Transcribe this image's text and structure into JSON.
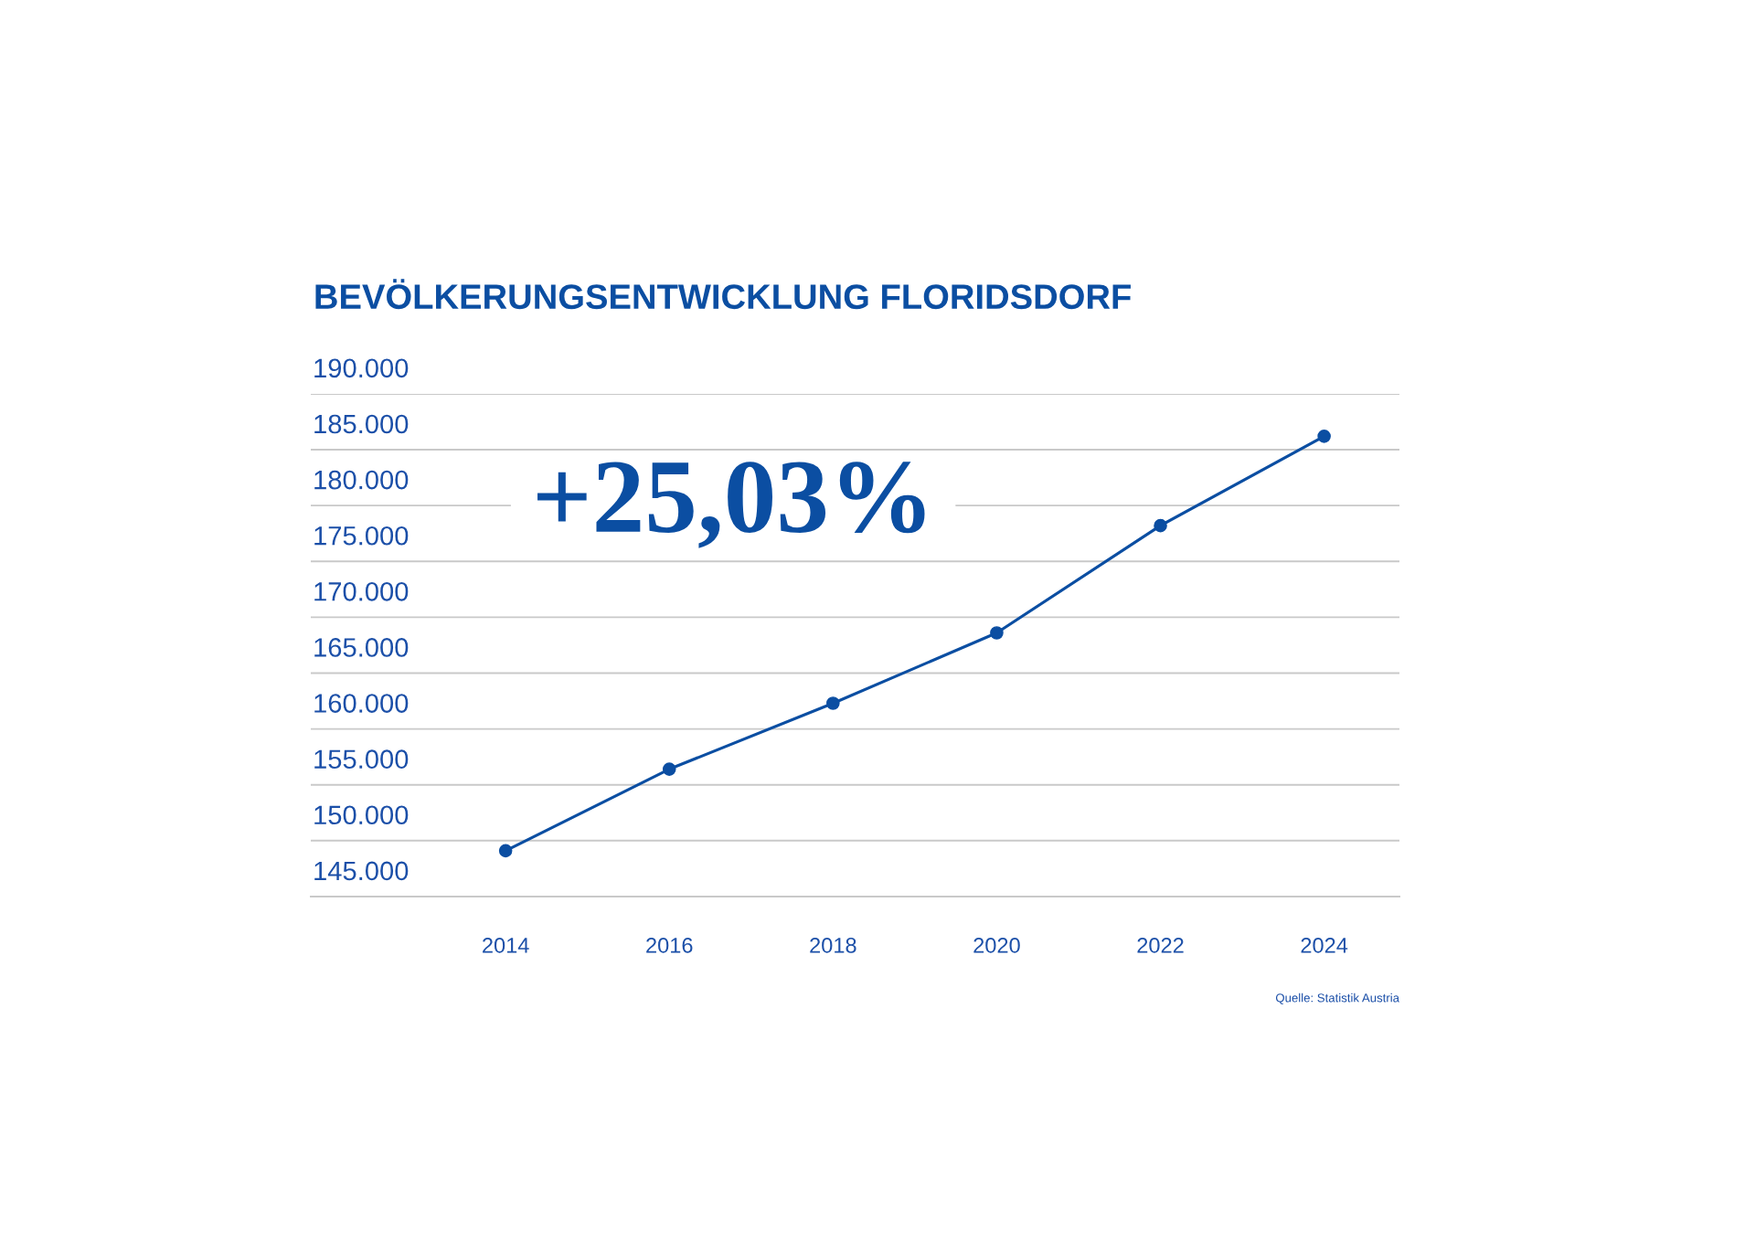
{
  "chart_data": {
    "type": "line",
    "title": "BEVÖLKERUNGSENTWICKLUNG FLORIDSDORF",
    "categories": [
      "2014",
      "2016",
      "2018",
      "2020",
      "2022",
      "2024"
    ],
    "series": [
      {
        "color": "#0b4ea2",
        "values": [
          149100,
          156400,
          162300,
          168600,
          178200,
          186200
        ]
      }
    ],
    "ylim": [
      145000,
      190000
    ],
    "yticks": [
      {
        "value": 145000,
        "label": "145.000"
      },
      {
        "value": 150000,
        "label": "150.000"
      },
      {
        "value": 155000,
        "label": "155.000"
      },
      {
        "value": 160000,
        "label": "160.000"
      },
      {
        "value": 165000,
        "label": "165.000"
      },
      {
        "value": 170000,
        "label": "170.000"
      },
      {
        "value": 175000,
        "label": "175.000"
      },
      {
        "value": 180000,
        "label": "180.000"
      },
      {
        "value": 185000,
        "label": "185.000"
      },
      {
        "value": 190000,
        "label": "190.000"
      }
    ],
    "grid": "y",
    "marker": "circle",
    "line_style": "solid",
    "annotations": [
      "+25,03%",
      "Quelle: Statistik Austria"
    ]
  }
}
